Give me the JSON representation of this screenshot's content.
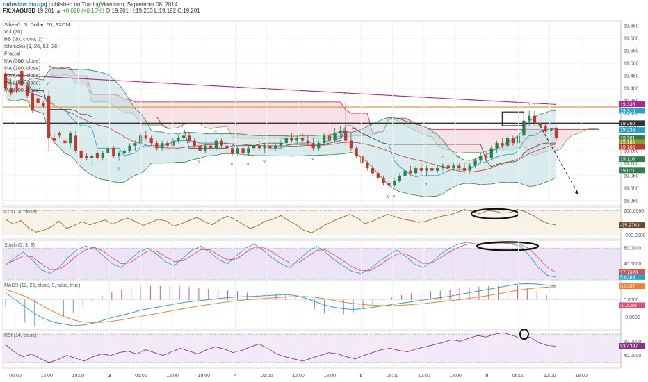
{
  "header": {
    "author": "radoslaw.mazgaj",
    "published": "published on TradingView.com, September 08, 2014",
    "symbol": "FX:XAGUSD",
    "last": "19.201",
    "change": "▲ +0.028 (+0.15%)",
    "o": "O:19.201",
    "h": "H:19.203",
    "l": "L:19.192",
    "c": "C:19.201"
  },
  "colors": {
    "up": "#2f7d4f",
    "down": "#c0392b",
    "bb_fill": "#bcdce0",
    "cloud": "#f3d6de",
    "ma_purple": "#b0208f",
    "orange_line": "#f2a03a"
  },
  "chart_data": [
    {
      "type": "candlestick",
      "title": "Silver/U.S. Dollar, 60, FXCM",
      "legend": [
        "Vol (20)",
        "BB (20, close, 2)",
        "Ichimoku (9, 26, 52, 26)",
        "Fractal",
        "MA (200, close)",
        "MA (200, close)",
        "MA (200, close)",
        "MA (200, close)",
        "MA (200, close)"
      ],
      "ylim": [
        18.93,
        19.67
      ],
      "yticks": [
        "19.650",
        "19.600",
        "19.550",
        "19.500",
        "19.450",
        "19.400",
        "19.350",
        "19.300",
        "19.250",
        "19.200",
        "19.150",
        "19.100",
        "19.050",
        "19.000",
        "18.950"
      ],
      "price_tags": [
        {
          "label": "19.336",
          "value": 19.336,
          "color": "#b0208f"
        },
        {
          "label": "19.310",
          "value": 19.31,
          "color": "#2aa1c6"
        },
        {
          "label": "19.260",
          "value": 19.26,
          "color": "#333333"
        },
        {
          "label": "19.233",
          "value": 19.233,
          "color": "#2aa1c6"
        },
        {
          "label": "19.201",
          "value": 19.201,
          "color": "#2f7d4f"
        },
        {
          "label": "19.185",
          "value": 19.185,
          "color": "#8b9c2f"
        },
        {
          "label": "19.165",
          "value": 19.165,
          "color": "#c0392b"
        },
        {
          "label": "19.116",
          "value": 19.116,
          "color": "#2f7d4f"
        },
        {
          "label": "19.071",
          "value": 19.071,
          "color": "#2f7d4f"
        }
      ],
      "horizontal_lines": [
        {
          "value": 19.325,
          "color": "#f2a03a"
        },
        {
          "value": 19.26,
          "color": "#333333"
        }
      ],
      "candles": [
        [
          19.46,
          19.47,
          19.39,
          19.4
        ],
        [
          19.4,
          19.44,
          19.37,
          19.38
        ],
        [
          19.42,
          19.43,
          19.38,
          19.39
        ],
        [
          19.47,
          19.48,
          19.4,
          19.41
        ],
        [
          19.41,
          19.42,
          19.36,
          19.37
        ],
        [
          19.38,
          19.39,
          19.3,
          19.31
        ],
        [
          19.36,
          19.37,
          19.33,
          19.34
        ],
        [
          19.34,
          19.35,
          19.32,
          19.33
        ],
        [
          19.37,
          19.39,
          19.15,
          19.2
        ],
        [
          19.2,
          19.22,
          19.18,
          19.19
        ],
        [
          19.22,
          19.23,
          19.2,
          19.21
        ],
        [
          19.19,
          19.21,
          19.17,
          19.18
        ],
        [
          19.18,
          19.23,
          19.16,
          19.22
        ],
        [
          19.21,
          19.23,
          19.14,
          19.15
        ],
        [
          19.15,
          19.16,
          19.11,
          19.12
        ],
        [
          19.13,
          19.14,
          19.11,
          19.12
        ],
        [
          19.12,
          19.14,
          19.09,
          19.13
        ],
        [
          19.14,
          19.15,
          19.11,
          19.12
        ],
        [
          19.12,
          19.15,
          19.11,
          19.14
        ],
        [
          19.14,
          19.17,
          19.12,
          19.16
        ],
        [
          19.16,
          19.17,
          19.12,
          19.13
        ],
        [
          19.13,
          19.15,
          19.11,
          19.14
        ],
        [
          19.14,
          19.16,
          19.12,
          19.15
        ],
        [
          19.15,
          19.18,
          19.14,
          19.17
        ],
        [
          19.17,
          19.19,
          19.15,
          19.18
        ],
        [
          19.18,
          19.22,
          19.17,
          19.21
        ],
        [
          19.21,
          19.23,
          19.19,
          19.2
        ],
        [
          19.2,
          19.21,
          19.17,
          19.18
        ],
        [
          19.18,
          19.19,
          19.15,
          19.16
        ],
        [
          19.16,
          19.19,
          19.15,
          19.18
        ],
        [
          19.18,
          19.19,
          19.16,
          19.17
        ],
        [
          19.17,
          19.2,
          19.16,
          19.19
        ],
        [
          19.19,
          19.21,
          19.18,
          19.2
        ],
        [
          19.2,
          19.22,
          19.19,
          19.21
        ],
        [
          19.21,
          19.22,
          19.18,
          19.19
        ],
        [
          19.19,
          19.2,
          19.16,
          19.17
        ],
        [
          19.17,
          19.18,
          19.14,
          19.15
        ],
        [
          19.15,
          19.18,
          19.14,
          19.17
        ],
        [
          19.17,
          19.18,
          19.15,
          19.16
        ],
        [
          19.16,
          19.2,
          19.15,
          19.19
        ],
        [
          19.19,
          19.2,
          19.16,
          19.17
        ],
        [
          19.17,
          19.18,
          19.15,
          19.16
        ],
        [
          19.16,
          19.17,
          19.13,
          19.14
        ],
        [
          19.14,
          19.17,
          19.13,
          19.16
        ],
        [
          19.16,
          19.17,
          19.13,
          19.14
        ],
        [
          19.14,
          19.17,
          19.13,
          19.16
        ],
        [
          19.16,
          19.18,
          19.15,
          19.17
        ],
        [
          19.17,
          19.19,
          19.15,
          19.16
        ],
        [
          19.16,
          19.18,
          19.14,
          19.17
        ],
        [
          19.17,
          19.18,
          19.15,
          19.16
        ],
        [
          19.16,
          19.18,
          19.15,
          19.17
        ],
        [
          19.17,
          19.19,
          19.16,
          19.18
        ],
        [
          19.18,
          19.21,
          19.17,
          19.2
        ],
        [
          19.2,
          19.22,
          19.18,
          19.19
        ],
        [
          19.19,
          19.21,
          19.18,
          19.2
        ],
        [
          19.2,
          19.22,
          19.18,
          19.19
        ],
        [
          19.19,
          19.21,
          19.17,
          19.18
        ],
        [
          19.18,
          19.2,
          19.15,
          19.16
        ],
        [
          19.16,
          19.19,
          19.15,
          19.18
        ],
        [
          19.18,
          19.22,
          19.17,
          19.21
        ],
        [
          19.21,
          19.23,
          19.18,
          19.19
        ],
        [
          19.19,
          19.24,
          19.18,
          19.22
        ],
        [
          19.22,
          19.25,
          19.2,
          19.23
        ],
        [
          19.23,
          19.35,
          19.17,
          19.19
        ],
        [
          19.19,
          19.22,
          19.15,
          19.16
        ],
        [
          19.16,
          19.17,
          19.12,
          19.13
        ],
        [
          19.13,
          19.14,
          19.09,
          19.1
        ],
        [
          19.1,
          19.11,
          19.07,
          19.08
        ],
        [
          19.08,
          19.09,
          19.05,
          19.06
        ],
        [
          19.06,
          19.07,
          19.03,
          19.04
        ],
        [
          19.04,
          19.05,
          19.01,
          19.02
        ],
        [
          19.02,
          19.03,
          19.0,
          19.01
        ],
        [
          19.01,
          19.04,
          19.0,
          19.03
        ],
        [
          19.03,
          19.06,
          19.02,
          19.05
        ],
        [
          19.05,
          19.08,
          19.04,
          19.07
        ],
        [
          19.07,
          19.09,
          19.05,
          19.06
        ],
        [
          19.06,
          19.09,
          19.05,
          19.08
        ],
        [
          19.08,
          19.1,
          19.06,
          19.07
        ],
        [
          19.07,
          19.09,
          19.05,
          19.08
        ],
        [
          19.08,
          19.09,
          19.06,
          19.07
        ],
        [
          19.07,
          19.09,
          19.06,
          19.08
        ],
        [
          19.08,
          19.1,
          19.07,
          19.09
        ],
        [
          19.09,
          19.1,
          19.07,
          19.08
        ],
        [
          19.08,
          19.1,
          19.07,
          19.09
        ],
        [
          19.09,
          19.1,
          19.07,
          19.08
        ],
        [
          19.08,
          19.1,
          19.06,
          19.07
        ],
        [
          19.07,
          19.1,
          19.06,
          19.09
        ],
        [
          19.09,
          19.12,
          19.08,
          19.11
        ],
        [
          19.11,
          19.14,
          19.1,
          19.13
        ],
        [
          19.13,
          19.15,
          19.11,
          19.12
        ],
        [
          19.12,
          19.17,
          19.11,
          19.16
        ],
        [
          19.16,
          19.19,
          19.14,
          19.18
        ],
        [
          19.18,
          19.2,
          19.16,
          19.17
        ],
        [
          19.17,
          19.21,
          19.16,
          19.2
        ],
        [
          19.2,
          19.21,
          19.17,
          19.18
        ],
        [
          19.18,
          19.22,
          19.17,
          19.21
        ],
        [
          19.21,
          19.28,
          19.2,
          19.27
        ],
        [
          19.27,
          19.31,
          19.25,
          19.29
        ],
        [
          19.29,
          19.31,
          19.25,
          19.26
        ],
        [
          19.26,
          19.28,
          19.24,
          19.25
        ],
        [
          19.25,
          19.26,
          19.22,
          19.23
        ],
        [
          19.23,
          19.25,
          19.21,
          19.24
        ],
        [
          19.24,
          19.25,
          19.19,
          19.2
        ]
      ],
      "x_ticks": [
        "06:00",
        "12:00",
        "18:00",
        "3",
        "06:00",
        "12:00",
        "18:00",
        "4",
        "06:00",
        "12:00",
        "18:00",
        "5",
        "06:00",
        "12:00",
        "18:00",
        "8",
        "06:00",
        "12:00",
        "18:00"
      ]
    },
    {
      "type": "line",
      "title": "CCI (14, close)",
      "yticks": [
        "200.0000",
        "-200.0000"
      ],
      "ylim": [
        -260,
        260
      ],
      "value_tag": "-35.2763",
      "values": [
        60,
        -20,
        40,
        -80,
        -150,
        -120,
        -60,
        30,
        -90,
        -40,
        20,
        -30,
        10,
        50,
        -20,
        40,
        80,
        20,
        -40,
        10,
        60,
        30,
        -50,
        -10,
        40,
        90,
        20,
        -30,
        50,
        110,
        60,
        -20,
        -90,
        -40,
        30,
        60,
        120,
        40,
        -30,
        -120,
        -160,
        -90,
        -20,
        40,
        90,
        140,
        80,
        -10,
        30,
        90,
        140,
        100,
        60,
        40,
        10,
        30,
        70,
        110,
        130,
        170,
        220,
        190,
        150,
        200,
        190,
        160,
        170,
        220,
        180,
        120,
        40,
        -10,
        -35
      ]
    },
    {
      "type": "line",
      "title": "Stoch (5, 3, 3)",
      "yticks": [
        "80.0000",
        "40.0000"
      ],
      "ylim": [
        0,
        100
      ],
      "value_tags": [
        "17.7628",
        "5.6389"
      ],
      "series": [
        {
          "name": "",
          "values": [
            35,
            55,
            70,
            50,
            25,
            15,
            30,
            55,
            75,
            85,
            80,
            60,
            40,
            30,
            50,
            70,
            80,
            65,
            45,
            35,
            55,
            75,
            85,
            70,
            50,
            40,
            60,
            80,
            90,
            75,
            55,
            40,
            30,
            50,
            70,
            85,
            70,
            50,
            35,
            20,
            15,
            25,
            45,
            60,
            75,
            60,
            40,
            30,
            45,
            65,
            80,
            90,
            95,
            90,
            92,
            94,
            93,
            90,
            85,
            60,
            30,
            10,
            5
          ]
        },
        {
          "name": "",
          "values": [
            40,
            48,
            60,
            58,
            40,
            25,
            25,
            40,
            60,
            75,
            82,
            72,
            55,
            40,
            42,
            58,
            72,
            72,
            58,
            45,
            48,
            62,
            76,
            76,
            62,
            50,
            52,
            68,
            82,
            82,
            70,
            55,
            42,
            42,
            58,
            74,
            76,
            62,
            48,
            32,
            22,
            22,
            34,
            50,
            64,
            66,
            54,
            40,
            42,
            56,
            70,
            82,
            90,
            91,
            91,
            92,
            93,
            92,
            89,
            78,
            55,
            30,
            17
          ]
        }
      ]
    },
    {
      "type": "line",
      "title": "MACD (12, 26, close, 9, false, true)",
      "yticks": [
        "0.0000",
        "-0.0500"
      ],
      "ylim": [
        -0.085,
        0.055
      ],
      "value_tags": [
        "0.0387",
        "-0.0080"
      ],
      "series": [
        {
          "name": "",
          "values": [
            0.02,
            0.0,
            -0.02,
            -0.04,
            -0.055,
            -0.065,
            -0.07,
            -0.075,
            -0.073,
            -0.068,
            -0.06,
            -0.052,
            -0.045,
            -0.038,
            -0.03,
            -0.025,
            -0.02,
            -0.015,
            -0.01,
            -0.006,
            -0.003,
            0.0,
            0.003,
            0.006,
            0.008,
            0.009,
            0.01,
            0.012,
            0.013,
            0.015,
            0.012,
            0.005,
            -0.005,
            -0.015,
            -0.022,
            -0.026,
            -0.028,
            -0.026,
            -0.022,
            -0.018,
            -0.014,
            -0.01,
            -0.006,
            -0.002,
            0.002,
            0.006,
            0.01,
            0.015,
            0.02,
            0.025,
            0.03,
            0.035,
            0.04,
            0.045,
            0.046,
            0.045,
            0.042,
            0.039
          ]
        },
        {
          "name": "",
          "values": [
            0.03,
            0.02,
            0.01,
            -0.005,
            -0.02,
            -0.035,
            -0.048,
            -0.058,
            -0.064,
            -0.066,
            -0.065,
            -0.062,
            -0.058,
            -0.053,
            -0.048,
            -0.043,
            -0.038,
            -0.033,
            -0.028,
            -0.023,
            -0.018,
            -0.014,
            -0.01,
            -0.006,
            -0.003,
            0.0,
            0.002,
            0.004,
            0.006,
            0.008,
            0.009,
            0.009,
            0.007,
            0.003,
            -0.002,
            -0.007,
            -0.011,
            -0.014,
            -0.016,
            -0.017,
            -0.017,
            -0.016,
            -0.014,
            -0.012,
            -0.009,
            -0.006,
            -0.003,
            0.0,
            0.004,
            0.008,
            0.012,
            0.017,
            0.022,
            0.027,
            0.031,
            0.034,
            0.036,
            0.037
          ]
        }
      ]
    },
    {
      "type": "line",
      "title": "RSI (14, close)",
      "yticks": [
        "60.0000",
        "40.0000"
      ],
      "ylim": [
        22,
        75
      ],
      "value_tag": "53.4387",
      "values": [
        55,
        45,
        38,
        42,
        35,
        30,
        34,
        40,
        36,
        32,
        38,
        42,
        40,
        44,
        46,
        42,
        48,
        44,
        40,
        45,
        50,
        46,
        42,
        48,
        52,
        49,
        44,
        47,
        52,
        56,
        50,
        42,
        38,
        35,
        32,
        36,
        40,
        44,
        42,
        38,
        35,
        40,
        44,
        48,
        50,
        47,
        45,
        49,
        52,
        55,
        58,
        62,
        60,
        64,
        68,
        66,
        70,
        72,
        68,
        64,
        66,
        58,
        54,
        53
      ]
    }
  ]
}
